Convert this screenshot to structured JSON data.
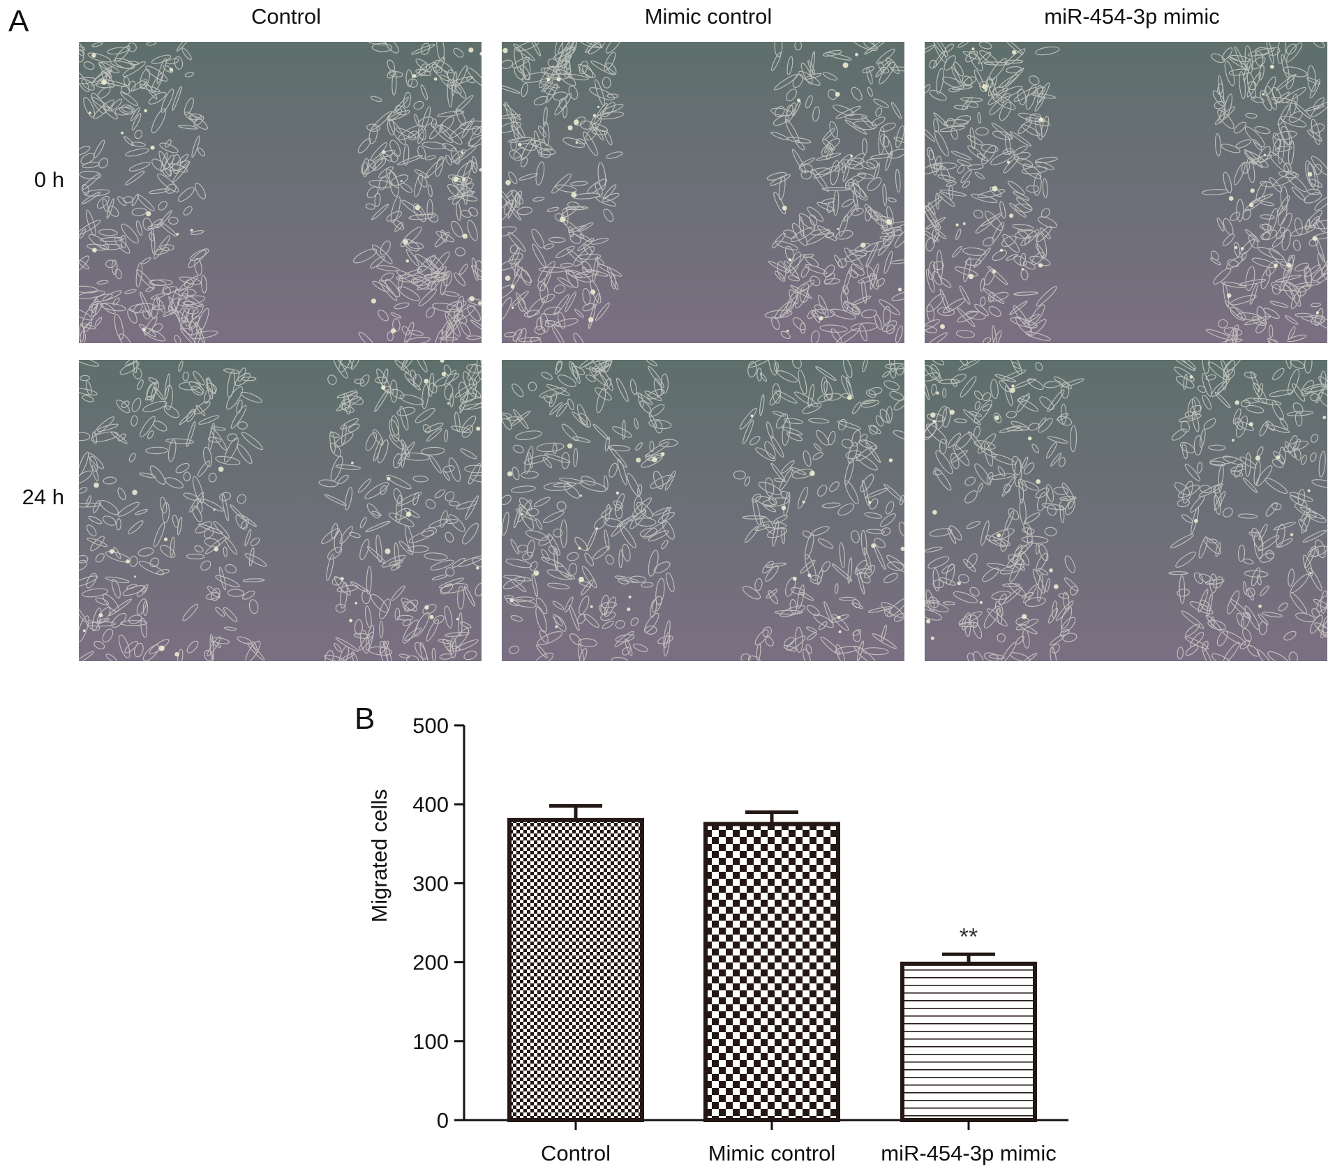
{
  "panel_a": {
    "letter": "A",
    "column_titles": [
      "Control",
      "Mimic control",
      "miR-454-3p mimic"
    ],
    "row_labels": [
      "0 h",
      "24 h"
    ]
  },
  "panel_b": {
    "letter": "B"
  },
  "colors": {
    "bar_stroke": "#231815",
    "micro_bg_top": "#5e6f6c",
    "micro_bg_bottom": "#7a6f82"
  },
  "chart_data": {
    "type": "bar",
    "categories": [
      "Control",
      "Mimic control",
      "miR-454-3p mimic"
    ],
    "values": [
      380,
      375,
      198
    ],
    "errors": [
      18,
      15,
      12
    ],
    "annotations": [
      "",
      "",
      "**"
    ],
    "patterns": [
      "fine-checker",
      "checker",
      "horizontal-lines"
    ],
    "ylabel": "Migrated cells",
    "xlabel": "",
    "ylim": [
      0,
      500
    ],
    "yticks": [
      0,
      100,
      200,
      300,
      400,
      500
    ]
  }
}
